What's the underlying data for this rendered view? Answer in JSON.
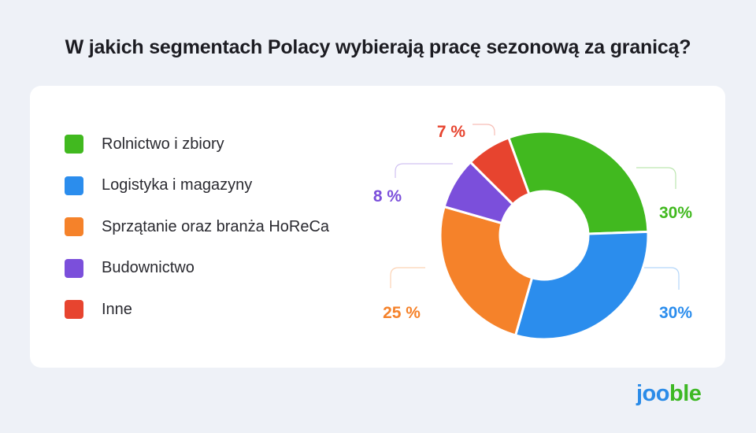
{
  "header": {
    "title": "W jakich segmentach Polacy wybierają pracę sezonową za granicą?"
  },
  "colors": {
    "green": "#41b91f",
    "blue": "#2b8ded",
    "orange": "#f5822a",
    "purple": "#7b4fdb",
    "red": "#e7442f",
    "background": "#eef1f7",
    "card": "#ffffff"
  },
  "chart_data": {
    "type": "pie",
    "variant": "donut",
    "title": "W jakich segmentach Polacy wybierają pracę sezonową za granicą?",
    "legend_position": "left",
    "slices": [
      {
        "label": "Rolnictwo i zbiory",
        "value": 30,
        "value_label": "30%",
        "color": "#41b91f"
      },
      {
        "label": "Logistyka i magazyny",
        "value": 30,
        "value_label": "30%",
        "color": "#2b8ded"
      },
      {
        "label": "Sprzątanie oraz branża HoReCa",
        "value": 25,
        "value_label": "25 %",
        "color": "#f5822a"
      },
      {
        "label": "Budownictwo",
        "value": 8,
        "value_label": "8 %",
        "color": "#7b4fdb"
      },
      {
        "label": "Inne",
        "value": 7,
        "value_label": "7 %",
        "color": "#e7442f"
      }
    ]
  },
  "brand": {
    "logo_part1": "joo",
    "logo_part2": "ble"
  }
}
